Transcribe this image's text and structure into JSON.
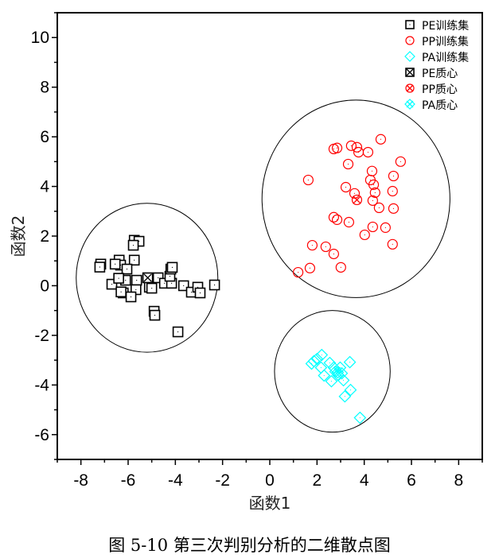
{
  "chart_data": {
    "type": "scatter",
    "title": "",
    "xlabel": "函数1",
    "ylabel": "函数2",
    "xlim": [
      -9,
      9
    ],
    "ylim": [
      -7,
      11
    ],
    "xticks": [
      -8,
      -6,
      -4,
      -2,
      0,
      2,
      4,
      6,
      8
    ],
    "yticks": [
      -6,
      -4,
      -2,
      0,
      2,
      4,
      6,
      8,
      10
    ],
    "grid": false,
    "legend_position": "top-right",
    "caption": "图 5-10 第三次判别分析的二维散点图",
    "series": [
      {
        "name": "PE训练集",
        "marker": "square",
        "color": "#000000",
        "points": [
          [
            -5.74,
            1.83
          ],
          [
            -5.54,
            1.79
          ],
          [
            -5.78,
            1.63
          ],
          [
            -7.16,
            0.87
          ],
          [
            -6.38,
            1.03
          ],
          [
            -6.32,
            0.83
          ],
          [
            -6.55,
            0.87
          ],
          [
            -5.74,
            1.03
          ],
          [
            -6.05,
            0.67
          ],
          [
            -6.69,
            0.06
          ],
          [
            -6.11,
            0.22
          ],
          [
            -5.64,
            0.22
          ],
          [
            -5.1,
            -0.06
          ],
          [
            -5.0,
            -0.1
          ],
          [
            -4.73,
            0.32
          ],
          [
            -4.46,
            0.1
          ],
          [
            -4.16,
            0.1
          ],
          [
            -4.23,
            0.38
          ],
          [
            -4.19,
            0.67
          ],
          [
            -4.13,
            0.74
          ],
          [
            -5.67,
            -0.16
          ],
          [
            -6.21,
            -0.29
          ],
          [
            -5.88,
            -0.45
          ],
          [
            -3.65,
            0.0
          ],
          [
            -3.32,
            -0.26
          ],
          [
            -3.05,
            -0.06
          ],
          [
            -2.95,
            -0.29
          ],
          [
            -2.34,
            0.03
          ],
          [
            -4.9,
            -1.03
          ],
          [
            -4.87,
            -1.19
          ],
          [
            -3.89,
            -1.86
          ],
          [
            -7.2,
            0.75
          ],
          [
            -6.4,
            0.3
          ],
          [
            -6.3,
            -0.25
          ]
        ]
      },
      {
        "name": "PP训练集",
        "marker": "circle",
        "color": "#ff0000",
        "points": [
          [
            4.7,
            5.9
          ],
          [
            2.71,
            5.51
          ],
          [
            2.85,
            5.55
          ],
          [
            3.45,
            5.64
          ],
          [
            3.69,
            5.58
          ],
          [
            3.76,
            5.38
          ],
          [
            4.16,
            5.38
          ],
          [
            5.54,
            5.0
          ],
          [
            3.32,
            4.9
          ],
          [
            1.63,
            4.26
          ],
          [
            4.33,
            4.62
          ],
          [
            5.24,
            4.42
          ],
          [
            4.26,
            4.26
          ],
          [
            4.4,
            4.07
          ],
          [
            3.22,
            3.97
          ],
          [
            4.46,
            3.75
          ],
          [
            5.2,
            3.81
          ],
          [
            3.59,
            3.72
          ],
          [
            4.36,
            3.43
          ],
          [
            4.63,
            3.14
          ],
          [
            5.24,
            3.11
          ],
          [
            2.71,
            2.76
          ],
          [
            2.85,
            2.66
          ],
          [
            3.35,
            2.56
          ],
          [
            4.36,
            2.37
          ],
          [
            4.9,
            2.34
          ],
          [
            4.02,
            2.05
          ],
          [
            5.2,
            1.67
          ],
          [
            1.8,
            1.63
          ],
          [
            2.37,
            1.57
          ],
          [
            2.71,
            1.28
          ],
          [
            1.7,
            0.71
          ],
          [
            1.2,
            0.54
          ],
          [
            3.01,
            0.74
          ]
        ]
      },
      {
        "name": "PA训练集",
        "marker": "diamond",
        "color": "#00ffff",
        "points": [
          [
            1.87,
            -3.04
          ],
          [
            2.2,
            -2.79
          ],
          [
            1.77,
            -3.14
          ],
          [
            2.17,
            -3.3
          ],
          [
            2.54,
            -3.11
          ],
          [
            2.71,
            -3.3
          ],
          [
            2.98,
            -3.3
          ],
          [
            3.39,
            -3.08
          ],
          [
            2.3,
            -3.62
          ],
          [
            2.78,
            -3.46
          ],
          [
            3.05,
            -3.53
          ],
          [
            2.61,
            -3.85
          ],
          [
            3.12,
            -3.81
          ],
          [
            3.42,
            -4.2
          ],
          [
            3.18,
            -4.46
          ],
          [
            3.82,
            -5.32
          ],
          [
            2.0,
            -2.95
          ],
          [
            2.9,
            -3.6
          ]
        ]
      },
      {
        "name": "PE质心",
        "marker": "square-x",
        "color": "#000000",
        "points": [
          [
            -5.17,
            0.32
          ]
        ]
      },
      {
        "name": "PP质心",
        "marker": "circle-x",
        "color": "#ff0000",
        "points": [
          [
            3.69,
            3.46
          ]
        ]
      },
      {
        "name": "PA质心",
        "marker": "diamond-x",
        "color": "#00ffff",
        "points": [
          [
            2.88,
            -3.49
          ]
        ]
      }
    ],
    "group_circles": [
      {
        "group": "PE",
        "center": [
          -5.2,
          0.32
        ],
        "radius": 3.0
      },
      {
        "group": "PP",
        "center": [
          3.65,
          3.5
        ],
        "radius": 3.98
      },
      {
        "group": "PA",
        "center": [
          2.65,
          -3.45
        ],
        "radius": 2.45
      }
    ]
  }
}
